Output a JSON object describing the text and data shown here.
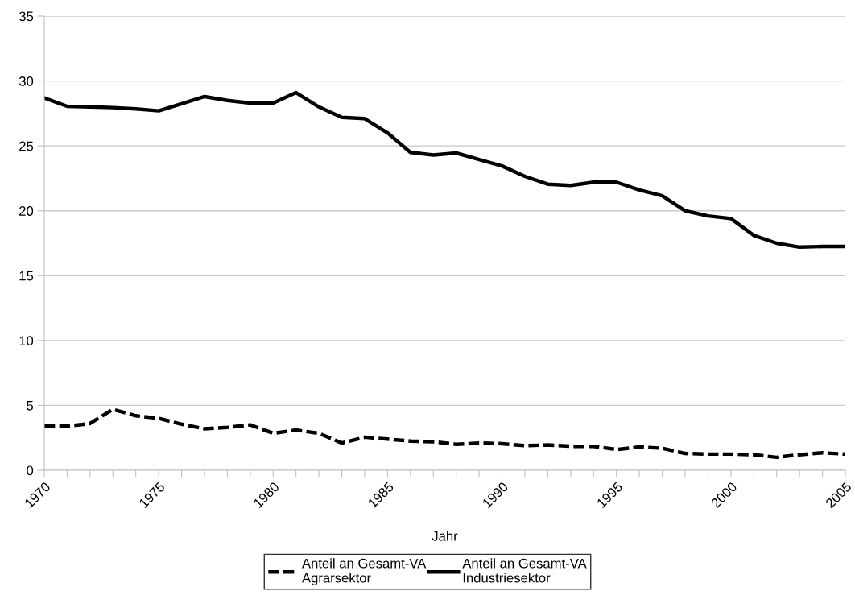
{
  "chart_data": {
    "type": "line",
    "xlabel": "Jahr",
    "x": [
      1970,
      1971,
      1972,
      1973,
      1974,
      1975,
      1976,
      1977,
      1978,
      1979,
      1980,
      1981,
      1982,
      1983,
      1984,
      1985,
      1986,
      1987,
      1988,
      1989,
      1990,
      1991,
      1992,
      1993,
      1994,
      1995,
      1996,
      1997,
      1998,
      1999,
      2000,
      2001,
      2002,
      2003,
      2004,
      2005
    ],
    "series": [
      {
        "name": "Anteil an Gesamt-VA\nAgrarsektor",
        "color": "#000000",
        "line_style": "dashed",
        "values": [
          3.4,
          3.4,
          3.6,
          4.7,
          4.2,
          4.0,
          3.55,
          3.2,
          3.3,
          3.5,
          2.85,
          3.1,
          2.85,
          2.1,
          2.55,
          2.4,
          2.25,
          2.2,
          2.0,
          2.1,
          2.05,
          1.9,
          1.95,
          1.85,
          1.85,
          1.6,
          1.8,
          1.7,
          1.3,
          1.25,
          1.25,
          1.2,
          1.0,
          1.2,
          1.35,
          1.25
        ]
      },
      {
        "name": "Anteil an Gesamt-VA\nIndustriesektor",
        "color": "#000000",
        "line_style": "solid",
        "values": [
          28.7,
          28.05,
          28.0,
          27.95,
          27.85,
          27.7,
          28.25,
          28.8,
          28.5,
          28.3,
          28.3,
          29.1,
          28.0,
          27.2,
          27.1,
          26.0,
          24.5,
          24.3,
          24.45,
          23.95,
          23.45,
          22.65,
          22.05,
          21.95,
          22.2,
          22.2,
          21.6,
          21.15,
          20.0,
          19.6,
          19.4,
          18.1,
          17.5,
          17.2,
          17.25,
          17.25
        ]
      }
    ],
    "xlim": [
      1970,
      2005
    ],
    "xticks": [
      1970,
      {
        "value": 1971,
        "label": null
      },
      {
        "value": 1972,
        "label": null
      },
      {
        "value": 1973,
        "label": null
      },
      {
        "value": 1974,
        "label": null
      },
      1975,
      {
        "value": 1976,
        "label": null
      },
      {
        "value": 1977,
        "label": null
      },
      {
        "value": 1978,
        "label": null
      },
      {
        "value": 1979,
        "label": null
      },
      1980,
      {
        "value": 1981,
        "label": null
      },
      {
        "value": 1982,
        "label": null
      },
      {
        "value": 1983,
        "label": null
      },
      {
        "value": 1984,
        "label": null
      },
      1985,
      {
        "value": 1986,
        "label": null
      },
      {
        "value": 1987,
        "label": null
      },
      {
        "value": 1988,
        "label": null
      },
      {
        "value": 1989,
        "label": null
      },
      1990,
      {
        "value": 1991,
        "label": null
      },
      {
        "value": 1992,
        "label": null
      },
      {
        "value": 1993,
        "label": null
      },
      {
        "value": 1994,
        "label": null
      },
      1995,
      {
        "value": 1996,
        "label": null
      },
      {
        "value": 1997,
        "label": null
      },
      {
        "value": 1998,
        "label": null
      },
      {
        "value": 1999,
        "label": null
      },
      2000,
      {
        "value": 2001,
        "label": null
      },
      {
        "value": 2002,
        "label": null
      },
      {
        "value": 2003,
        "label": null
      },
      {
        "value": 2004,
        "label": null
      },
      2005
    ],
    "ylim": [
      0,
      35
    ],
    "yticks": [
      0,
      5,
      10,
      15,
      20,
      25,
      30,
      35
    ],
    "grid": "y",
    "legend": "bottom",
    "marker": "none"
  }
}
